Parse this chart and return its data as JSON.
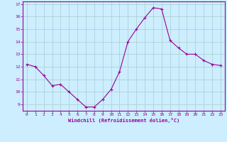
{
  "x": [
    0,
    1,
    2,
    3,
    4,
    5,
    6,
    7,
    8,
    9,
    10,
    11,
    12,
    13,
    14,
    15,
    16,
    17,
    18,
    19,
    20,
    21,
    22,
    23
  ],
  "y": [
    12.2,
    12.0,
    11.3,
    10.5,
    10.6,
    10.0,
    9.4,
    8.8,
    8.8,
    9.4,
    10.2,
    11.6,
    14.0,
    15.0,
    15.9,
    16.7,
    16.6,
    14.1,
    13.5,
    13.0,
    13.0,
    12.5,
    12.2,
    12.1
  ],
  "xlim": [
    -0.5,
    23.5
  ],
  "ylim": [
    8.5,
    17.2
  ],
  "yticks": [
    9,
    10,
    11,
    12,
    13,
    14,
    15,
    16,
    17
  ],
  "xticks": [
    0,
    1,
    2,
    3,
    4,
    5,
    6,
    7,
    8,
    9,
    10,
    11,
    12,
    13,
    14,
    15,
    16,
    17,
    18,
    19,
    20,
    21,
    22,
    23
  ],
  "xlabel": "Windchill (Refroidissement éolien,°C)",
  "line_color": "#990099",
  "marker": "+",
  "bg_color": "#cceeff",
  "grid_color": "#aacccc",
  "axis_color": "#990099",
  "tick_color": "#990099",
  "label_color": "#990099"
}
